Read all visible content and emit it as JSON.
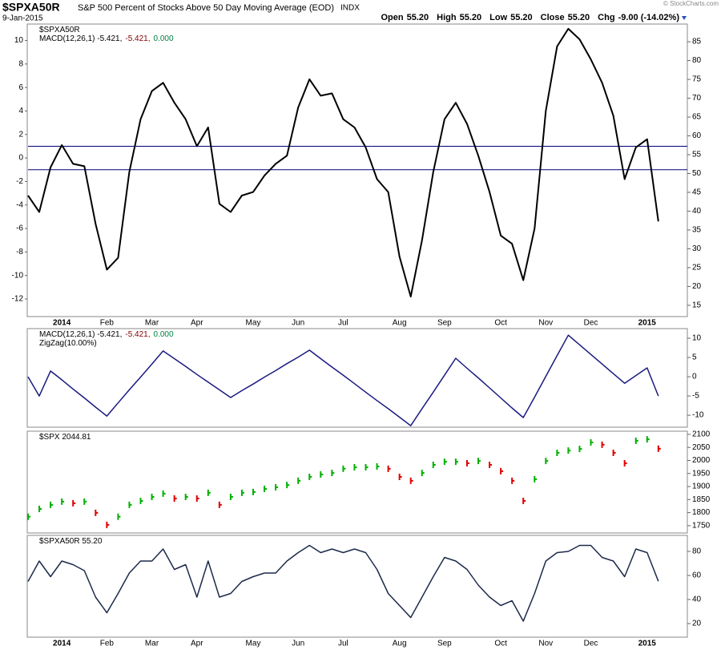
{
  "header": {
    "symbol": "$SPXA50R",
    "name": "S&P 500 Percent of Stocks Above 50 Day Moving Average (EOD)",
    "exchange": "INDX",
    "date": "9-Jan-2015",
    "quote": [
      {
        "label": "Open",
        "value": "55.20"
      },
      {
        "label": "High",
        "value": "55.20"
      },
      {
        "label": "Low",
        "value": "55.20"
      },
      {
        "label": "Close",
        "value": "55.20"
      },
      {
        "label": "Chg",
        "value": "-9.00 (-14.02%)"
      }
    ],
    "copyright": "© StockCharts.com"
  },
  "chart_data": [
    {
      "type": "line",
      "legend_parts": [
        [
          {
            "text": "$SPXA50R",
            "color": "#000000"
          }
        ],
        [
          {
            "text": "MACD(12,26,1) -5.421,",
            "color": "#000000"
          },
          {
            "text": "-5.421,",
            "color": "#800000"
          },
          {
            "text": "0.000",
            "color": "#008040"
          }
        ]
      ],
      "categories": [
        null,
        null,
        null,
        "2014",
        null,
        null,
        null,
        "Feb",
        null,
        null,
        null,
        "Mar",
        null,
        null,
        null,
        "Apr",
        null,
        null,
        null,
        null,
        "May",
        null,
        null,
        null,
        "Jun",
        null,
        null,
        null,
        "Jul",
        null,
        null,
        null,
        null,
        "Aug",
        null,
        null,
        null,
        "Sep",
        null,
        null,
        null,
        null,
        "Oct",
        null,
        null,
        null,
        "Nov",
        null,
        null,
        null,
        "Dec",
        null,
        null,
        null,
        null,
        "2015",
        null
      ],
      "series": [
        {
          "name": "MACD(12,26,1)",
          "color": "#000000",
          "values": [
            -3.2,
            -4.6,
            -0.8,
            1.1,
            -0.5,
            -0.7,
            -5.6,
            -9.5,
            -8.5,
            -1.2,
            3.3,
            5.7,
            6.4,
            4.7,
            3.3,
            1.0,
            2.6,
            -3.9,
            -4.6,
            -3.2,
            -2.9,
            -1.5,
            -0.5,
            0.2,
            4.3,
            6.7,
            5.3,
            5.5,
            3.3,
            2.6,
            0.9,
            -1.8,
            -2.9,
            -8.4,
            -11.8,
            -7.0,
            -1.2,
            3.3,
            4.7,
            2.9,
            0.2,
            -2.9,
            -6.6,
            -7.3,
            -10.4,
            -6.0,
            4.0,
            9.5,
            11.0,
            10.1,
            8.4,
            6.4,
            3.6,
            -1.8,
            0.9,
            1.6,
            -5.4
          ]
        }
      ],
      "reference_lines": [
        1,
        -1
      ],
      "reference_color": "#000080",
      "ylim": [
        -13.5,
        11.4
      ],
      "yticks": [
        -12,
        -10,
        -8,
        -6,
        -4,
        -2,
        0,
        2,
        4,
        6,
        8,
        10
      ],
      "y2lim": [
        12,
        89.7
      ],
      "y2ticks": [
        15,
        20,
        25,
        30,
        35,
        40,
        45,
        50,
        55,
        60,
        65,
        70,
        75,
        80,
        85
      ]
    },
    {
      "type": "line",
      "legend_parts": [
        [
          {
            "text": "MACD(12,26,1) -5.421,",
            "color": "#000000"
          },
          {
            "text": "-5.421,",
            "color": "#800000"
          },
          {
            "text": "0.000",
            "color": "#008040"
          }
        ],
        [
          {
            "text": "ZigZag(10.00%)",
            "color": "#000000"
          }
        ]
      ],
      "series": [
        {
          "name": "ZigZag(10.00%)",
          "color": "#1a1a80",
          "values": [
            0,
            -5,
            1.5,
            -0.8,
            -3.2,
            -5.5,
            -7.9,
            -10.2,
            -6.8,
            -3.4,
            -0.1,
            3.3,
            6.7,
            4.7,
            2.7,
            0.6,
            -1.4,
            -3.4,
            -5.4,
            -3.6,
            -1.9,
            -0.1,
            1.6,
            3.4,
            5.1,
            6.9,
            4.7,
            2.5,
            0.4,
            -1.8,
            -4.0,
            -6.2,
            -8.3,
            -10.5,
            -12.7,
            -8.3,
            -4.0,
            0.4,
            4.8,
            2.2,
            -0.3,
            -2.9,
            -5.5,
            -8.1,
            -10.6,
            -5.3,
            0.1,
            5.5,
            10.8,
            8.3,
            5.8,
            3.3,
            0.8,
            -1.7,
            0.3,
            2.3,
            -5.0
          ]
        }
      ],
      "ylim": [
        -13.1,
        12.5
      ],
      "yticks": [
        -10,
        -5,
        0,
        5,
        10
      ]
    },
    {
      "type": "bars",
      "legend_parts": [
        [
          {
            "text": "$SPX 2044.81",
            "color": "#000000"
          }
        ]
      ],
      "series": [
        {
          "name": "$SPX",
          "up_color": "#00b000",
          "down_color": "#e00000",
          "values": [
            1784,
            1814,
            1830,
            1842,
            1836,
            1842,
            1799,
            1753,
            1784,
            1830,
            1845,
            1860,
            1873,
            1854,
            1860,
            1854,
            1876,
            1830,
            1860,
            1876,
            1879,
            1891,
            1897,
            1906,
            1922,
            1937,
            1946,
            1952,
            1968,
            1974,
            1974,
            1977,
            1968,
            1937,
            1922,
            1952,
            1983,
            1995,
            1995,
            1989,
            1998,
            1983,
            1959,
            1922,
            1845,
            1928,
            1998,
            2029,
            2038,
            2044,
            2069,
            2060,
            2029,
            1989,
            2075,
            2081,
            2044.81
          ]
        }
      ],
      "ylim": [
        1722,
        2112
      ],
      "yticks": [
        1750,
        1800,
        1850,
        1900,
        1950,
        2000,
        2050,
        2100
      ]
    },
    {
      "type": "line",
      "legend_parts": [
        [
          {
            "text": "$SPXA50R 55.20",
            "color": "#000000"
          }
        ]
      ],
      "categories": [
        null,
        null,
        null,
        "2014",
        null,
        null,
        null,
        "Feb",
        null,
        null,
        null,
        "Mar",
        null,
        null,
        null,
        "Apr",
        null,
        null,
        null,
        null,
        "May",
        null,
        null,
        null,
        "Jun",
        null,
        null,
        null,
        "Jul",
        null,
        null,
        null,
        null,
        "Aug",
        null,
        null,
        null,
        "Sep",
        null,
        null,
        null,
        null,
        "Oct",
        null,
        null,
        null,
        "Nov",
        null,
        null,
        null,
        "Dec",
        null,
        null,
        null,
        null,
        "2015",
        null
      ],
      "series": [
        {
          "name": "$SPXA50R",
          "color": "#1c2a4a",
          "values": [
            55,
            72,
            59,
            72,
            69,
            64,
            42,
            29,
            45,
            62,
            72,
            72,
            82,
            65,
            69,
            42,
            72,
            42,
            45,
            55,
            59,
            62,
            62,
            72,
            79,
            85,
            79,
            82,
            79,
            82,
            79,
            65,
            45,
            35,
            25,
            42,
            59,
            75,
            72,
            65,
            52,
            42,
            35,
            39,
            22,
            45,
            72,
            79,
            80,
            85,
            85,
            75,
            72,
            59,
            82,
            79,
            55.2
          ]
        }
      ],
      "ylim": [
        8.7,
        93.3
      ],
      "yticks": [
        20,
        40,
        60,
        80
      ]
    }
  ]
}
